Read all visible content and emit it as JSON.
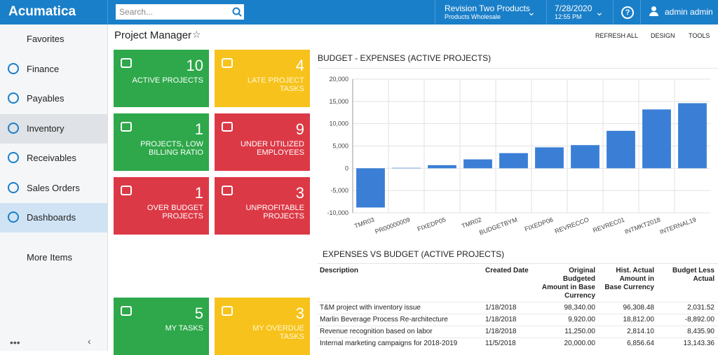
{
  "app": {
    "logo": "Acumatica",
    "search_placeholder": "Search...",
    "company": "Revision Two Products",
    "branch": "Products Wholesale",
    "date": "7/28/2020",
    "time": "12:55 PM",
    "user": "admin admin"
  },
  "sidebar": {
    "items": [
      "Favorites",
      "Finance",
      "Payables",
      "Inventory",
      "Receivables",
      "Sales Orders",
      "Dashboards"
    ],
    "more": "More Items"
  },
  "page": {
    "title": "Project Manager",
    "actions": [
      "REFRESH ALL",
      "DESIGN",
      "TOOLS"
    ]
  },
  "tiles": [
    {
      "value": 10,
      "label": "ACTIVE PROJECTS"
    },
    {
      "value": 4,
      "label": "LATE PROJECT TASKS"
    },
    {
      "value": 1,
      "label": "PROJECTS, LOW BILLING RATIO"
    },
    {
      "value": 9,
      "label": "UNDER UTILIZED EMPLOYEES"
    },
    {
      "value": 1,
      "label": "OVER BUDGET PROJECTS"
    },
    {
      "value": 3,
      "label": "UNPROFITABLE PROJECTS"
    },
    {
      "value": 5,
      "label": "MY TASKS"
    },
    {
      "value": 3,
      "label": "MY OVERDUE TASKS"
    }
  ],
  "chart_data": {
    "type": "bar",
    "title": "BUDGET - EXPENSES (ACTIVE PROJECTS)",
    "categories": [
      "TMR03",
      "PR00000009",
      "FIXEDP05",
      "TMR02",
      "BUDGETBYM",
      "FIXEDP06",
      "REVRECCO",
      "REVREC01",
      "INTMKT2018",
      "INTERNAL19"
    ],
    "values": [
      -8800,
      100,
      700,
      2000,
      3400,
      4700,
      5200,
      8400,
      13200,
      14600
    ],
    "color": "#3a7fd5",
    "ylim": [
      -10000,
      20000
    ],
    "yticks": [
      {
        "value": -10000,
        "label": "-10,000"
      },
      {
        "value": -5000,
        "label": "-5,000"
      },
      0,
      {
        "value": 5000,
        "label": "5,000"
      },
      {
        "value": 10000,
        "label": "10,000"
      },
      {
        "value": 15000,
        "label": "15,000"
      },
      {
        "value": 20000,
        "label": "20,000"
      }
    ],
    "grid": true
  },
  "table": {
    "title": "EXPENSES VS BUDGET (ACTIVE PROJECTS)",
    "columns": [
      "Description",
      "Created Date",
      "Original Budgeted Amount in Base Currency",
      "Hist. Actual Amount in Base Currency",
      "Budget Less Actual"
    ],
    "rows": [
      [
        "T&M project with inventory issue",
        "1/18/2018",
        "98,340.00",
        "96,308.48",
        "2,031.52"
      ],
      [
        "Marlin Beverage Process Re-architecture",
        "1/18/2018",
        "9,920.00",
        "18,812.00",
        "-8,892.00"
      ],
      [
        "Revenue recognition based on labor",
        "1/18/2018",
        "11,250.00",
        "2,814.10",
        "8,435.90"
      ],
      [
        "Internal marketing campaigns for 2018-2019",
        "11/5/2018",
        "20,000.00",
        "6,856.64",
        "13,143.36"
      ]
    ]
  }
}
